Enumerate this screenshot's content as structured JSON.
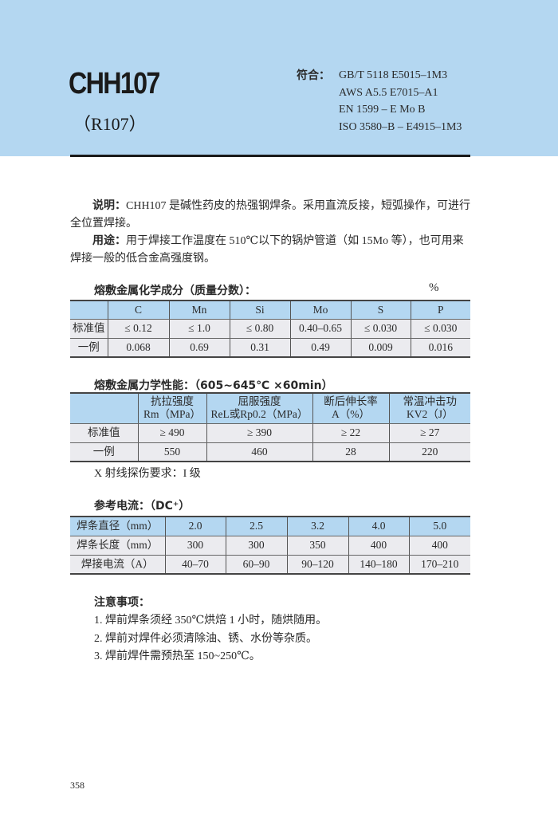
{
  "header": {
    "title": "CHH107",
    "subtitle": "（R107）",
    "conform_label": "符合：",
    "standards": [
      "GB/T 5118 E5015–1M3",
      "AWS A5.5 E7015–A1",
      "EN 1599 – E Mo B",
      "ISO 3580–B – E4915–1M3"
    ]
  },
  "description": {
    "label": "说明：",
    "text": "CHH107 是碱性药皮的热强钢焊条。采用直流反接，短弧操作，可进行全位置焊接。"
  },
  "usage": {
    "label": "用途：",
    "text": "用于焊接工作温度在 510℃以下的锅炉管道（如 15Mo 等），也可用来焊接一般的低合金高强度钢。"
  },
  "chem": {
    "title": "熔敷金属化学成分（质量分数）：",
    "unit": "%",
    "headers": [
      "",
      "C",
      "Mn",
      "Si",
      "Mo",
      "S",
      "P"
    ],
    "rows": [
      [
        "标准值",
        "≤ 0.12",
        "≤ 1.0",
        "≤ 0.80",
        "0.40–0.65",
        "≤ 0.030",
        "≤ 0.030"
      ],
      [
        "一例",
        "0.068",
        "0.69",
        "0.31",
        "0.49",
        "0.009",
        "0.016"
      ]
    ]
  },
  "mech": {
    "title": "熔敷金属力学性能：（605~645℃ ×60min）",
    "headers": [
      [
        "",
        ""
      ],
      [
        "抗拉强度",
        "Rm（MPa）"
      ],
      [
        "屈服强度",
        "ReL或Rp0.2（MPa）"
      ],
      [
        "断后伸长率",
        "A（%）"
      ],
      [
        "常温冲击功",
        "KV2（J）"
      ]
    ],
    "rows": [
      [
        "标准值",
        "≥ 490",
        "≥ 390",
        "≥ 22",
        "≥ 27"
      ],
      [
        "一例",
        "550",
        "460",
        "28",
        "220"
      ]
    ],
    "xray": "X 射线探伤要求：I 级"
  },
  "current": {
    "title": "参考电流：（DC⁺）",
    "rows": [
      [
        "焊条直径（mm）",
        "2.0",
        "2.5",
        "3.2",
        "4.0",
        "5.0"
      ],
      [
        "焊条长度（mm）",
        "300",
        "300",
        "350",
        "400",
        "400"
      ],
      [
        "焊接电流（A）",
        "40–70",
        "60–90",
        "90–120",
        "140–180",
        "170–210"
      ]
    ]
  },
  "notes": {
    "title": "注意事项：",
    "items": [
      "1. 焊前焊条须经 350℃烘焙 1 小时，随烘随用。",
      "2. 焊前对焊件必须清除油、锈、水份等杂质。",
      "3. 焊前焊件需预热至 150~250℃。"
    ]
  },
  "page_number": "358",
  "colors": {
    "header_bg": "#b4d7f1",
    "row_bg": "#ebebef"
  }
}
